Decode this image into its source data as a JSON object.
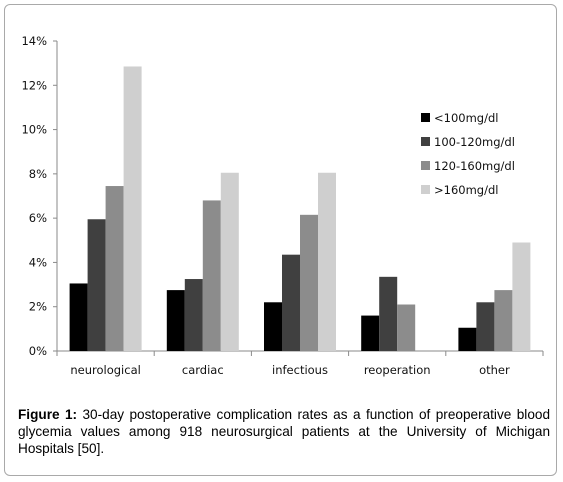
{
  "caption": {
    "label": "Figure 1:",
    "text": " 30-day postoperative complication rates as a function of preoperative blood glycemia values among 918 neurosurgical patients at the University of Michigan Hospitals [50]."
  },
  "chart_data": {
    "type": "bar",
    "title": "",
    "xlabel": "",
    "ylabel": "",
    "ylim": [
      0,
      14
    ],
    "yticks": [
      "0%",
      "2%",
      "4%",
      "6%",
      "8%",
      "10%",
      "12%",
      "14%"
    ],
    "grid": false,
    "legend_position": "right",
    "categories": [
      "neurological",
      "cardiac",
      "infectious",
      "reoperation",
      "other"
    ],
    "series": [
      {
        "name": "<100mg/dl",
        "color": "#000000",
        "values": [
          3.05,
          2.75,
          2.2,
          1.6,
          1.05
        ]
      },
      {
        "name": "100-120mg/dl",
        "color": "#404040",
        "values": [
          5.95,
          3.25,
          4.35,
          3.35,
          2.2
        ]
      },
      {
        "name": "120-160mg/dl",
        "color": "#8c8c8c",
        "values": [
          7.45,
          6.8,
          6.15,
          2.1,
          2.75
        ]
      },
      {
        "name": ">160mg/dl",
        "color": "#cfcfcf",
        "values": [
          12.85,
          8.05,
          8.05,
          0,
          4.9
        ]
      }
    ]
  }
}
